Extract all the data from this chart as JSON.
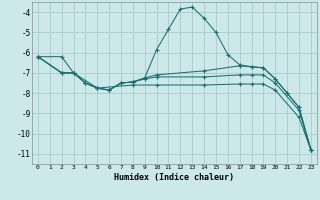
{
  "background_color": "#cce8e8",
  "grid_color": "#aacccc",
  "line_color": "#1a7070",
  "xlabel": "Humidex (Indice chaleur)",
  "ylim": [
    -11.5,
    -3.5
  ],
  "xlim": [
    -0.5,
    23.5
  ],
  "yticks": [
    -11,
    -10,
    -9,
    -8,
    -7,
    -6,
    -5,
    -4
  ],
  "xticks": [
    0,
    1,
    2,
    3,
    4,
    5,
    6,
    7,
    8,
    9,
    10,
    11,
    12,
    13,
    14,
    15,
    16,
    17,
    18,
    19,
    20,
    21,
    22,
    23
  ],
  "curves": [
    {
      "x": [
        0,
        2,
        3,
        4,
        5,
        6,
        7,
        8,
        9,
        10,
        11,
        12,
        13,
        14,
        15,
        16,
        17,
        18,
        19,
        20,
        21,
        22,
        23
      ],
      "y": [
        -6.2,
        -6.2,
        -7.0,
        -7.5,
        -7.75,
        -7.85,
        -7.5,
        -7.45,
        -7.25,
        -5.85,
        -4.85,
        -3.85,
        -3.75,
        -4.3,
        -5.0,
        -6.1,
        -6.6,
        -6.7,
        -6.75,
        -7.3,
        -8.0,
        -8.7,
        -10.8
      ]
    },
    {
      "x": [
        0,
        2,
        3,
        4,
        5,
        6,
        7,
        8,
        9,
        10,
        14,
        17,
        18,
        19,
        20,
        21,
        22,
        23
      ],
      "y": [
        -6.2,
        -7.0,
        -7.0,
        -7.5,
        -7.75,
        -7.85,
        -7.5,
        -7.45,
        -7.25,
        -7.1,
        -6.9,
        -6.65,
        -6.7,
        -6.75,
        -7.3,
        -8.0,
        -8.7,
        -10.8
      ]
    },
    {
      "x": [
        0,
        2,
        3,
        4,
        5,
        6,
        7,
        8,
        9,
        10,
        14,
        17,
        18,
        19,
        20,
        22,
        23
      ],
      "y": [
        -6.2,
        -7.0,
        -7.0,
        -7.5,
        -7.75,
        -7.85,
        -7.5,
        -7.45,
        -7.3,
        -7.2,
        -7.2,
        -7.1,
        -7.1,
        -7.1,
        -7.5,
        -8.85,
        -10.8
      ]
    },
    {
      "x": [
        0,
        2,
        3,
        5,
        8,
        10,
        14,
        17,
        18,
        19,
        20,
        22,
        23
      ],
      "y": [
        -6.2,
        -7.0,
        -7.0,
        -7.75,
        -7.6,
        -7.6,
        -7.6,
        -7.55,
        -7.55,
        -7.55,
        -7.85,
        -9.2,
        -10.8
      ]
    }
  ]
}
